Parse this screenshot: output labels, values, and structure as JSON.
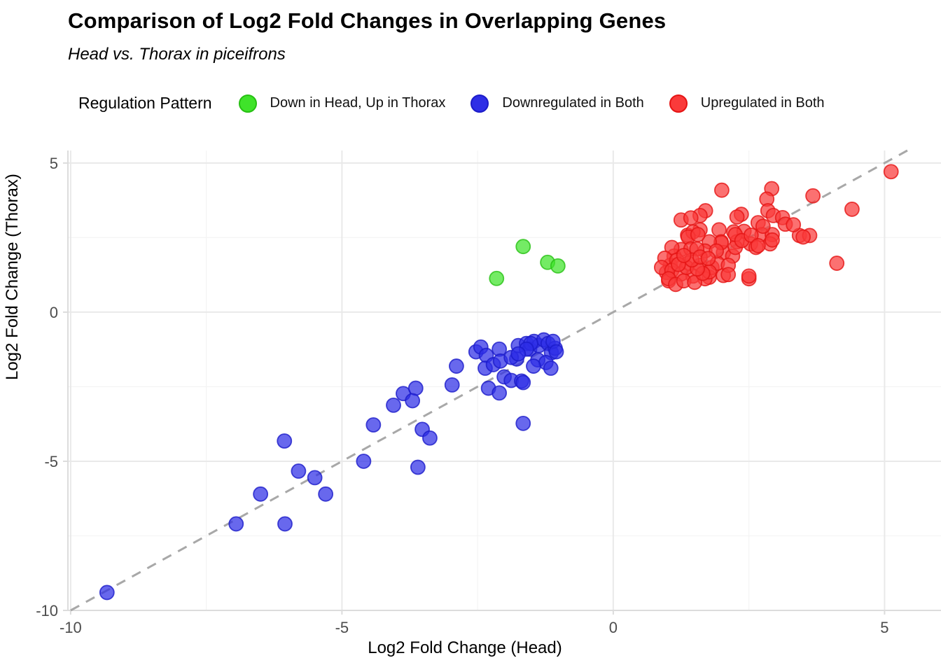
{
  "title": "Comparison of Log2 Fold Changes in Overlapping Genes",
  "subtitle": "Head vs. Thorax in piceifrons",
  "legend": {
    "title": "Regulation Pattern",
    "items": [
      {
        "label": "Down in Head, Up in Thorax",
        "color": "#3FE32A",
        "stroke": "#27C013"
      },
      {
        "label": "Downregulated in Both",
        "color": "#2E2EE6",
        "stroke": "#1C1CC9"
      },
      {
        "label": "Upregulated in Both",
        "color": "#FA3A3A",
        "stroke": "#E51414"
      }
    ]
  },
  "chart_data": {
    "type": "scatter",
    "title": "Comparison of Log2 Fold Changes in Overlapping Genes",
    "subtitle": "Head vs. Thorax in piceifrons",
    "xlabel": "Log2 Fold Change (Head)",
    "ylabel": "Log2 Fold Change (Thorax)",
    "xlim": [
      -10.05,
      6.04
    ],
    "ylim": [
      -10.0,
      5.42
    ],
    "x_ticks": [
      -10,
      -5,
      0,
      5
    ],
    "y_ticks": [
      -10,
      -5,
      0,
      5
    ],
    "x_minor": [
      -7.5,
      -2.5,
      2.5
    ],
    "y_minor": [
      -7.5,
      -2.5,
      2.5
    ],
    "grid": "on",
    "legend_position": "top",
    "reference_line": {
      "identity": true,
      "style": "dashed",
      "color": "#A8A8A8"
    },
    "series": [
      {
        "name": "Down in Head, Up in Thorax",
        "color": "#3FE32A",
        "stroke": "#27C013",
        "points": [
          [
            -2.15,
            1.13
          ],
          [
            -1.66,
            2.2
          ],
          [
            -1.21,
            1.67
          ],
          [
            -1.02,
            1.55
          ]
        ]
      },
      {
        "name": "Downregulated in Both",
        "color": "#2E2EE6",
        "stroke": "#1C1CC9",
        "points": [
          [
            -9.33,
            -9.4
          ],
          [
            -6.95,
            -7.1
          ],
          [
            -6.05,
            -7.1
          ],
          [
            -6.5,
            -6.1
          ],
          [
            -6.06,
            -4.32
          ],
          [
            -5.8,
            -5.33
          ],
          [
            -5.5,
            -5.55
          ],
          [
            -5.3,
            -6.1
          ],
          [
            -4.6,
            -5.0
          ],
          [
            -4.42,
            -3.78
          ],
          [
            -4.05,
            -3.12
          ],
          [
            -3.87,
            -2.73
          ],
          [
            -3.64,
            -2.55
          ],
          [
            -3.7,
            -2.97
          ],
          [
            -3.6,
            -5.2
          ],
          [
            -3.52,
            -3.93
          ],
          [
            -3.38,
            -4.22
          ],
          [
            -2.97,
            -2.44
          ],
          [
            -2.89,
            -1.81
          ],
          [
            -2.53,
            -1.33
          ],
          [
            -2.44,
            -1.17
          ],
          [
            -2.34,
            -1.45
          ],
          [
            -2.36,
            -1.88
          ],
          [
            -2.21,
            -1.76
          ],
          [
            -2.3,
            -2.55
          ],
          [
            -2.1,
            -1.24
          ],
          [
            -2.08,
            -1.64
          ],
          [
            -2.01,
            -2.17
          ],
          [
            -2.1,
            -2.71
          ],
          [
            -1.88,
            -2.29
          ],
          [
            -1.69,
            -2.31
          ],
          [
            -1.78,
            -1.57
          ],
          [
            -1.88,
            -1.52
          ],
          [
            -1.75,
            -1.12
          ],
          [
            -1.6,
            -1.05
          ],
          [
            -1.54,
            -1.24
          ],
          [
            -1.46,
            -0.98
          ],
          [
            -1.37,
            -1.12
          ],
          [
            -1.28,
            -0.93
          ],
          [
            -1.2,
            -1.05
          ],
          [
            -1.14,
            -1.36
          ],
          [
            -1.07,
            -1.21
          ],
          [
            -1.11,
            -0.98
          ],
          [
            -1.39,
            -1.6
          ],
          [
            -1.24,
            -1.69
          ],
          [
            -1.47,
            -1.81
          ],
          [
            -1.15,
            -1.88
          ],
          [
            -1.05,
            -1.33
          ],
          [
            -1.66,
            -2.36
          ],
          [
            -1.66,
            -3.73
          ],
          [
            -1.52,
            -1.05
          ],
          [
            -1.6,
            -1.24
          ],
          [
            -1.75,
            -1.4
          ]
        ]
      },
      {
        "name": "Upregulated in Both",
        "color": "#FA3A3A",
        "stroke": "#E51414",
        "points": [
          [
            5.12,
            4.71
          ],
          [
            3.68,
            3.9
          ],
          [
            4.4,
            3.45
          ],
          [
            4.12,
            1.64
          ],
          [
            3.43,
            2.57
          ],
          [
            3.62,
            2.57
          ],
          [
            2.0,
            4.09
          ],
          [
            2.92,
            4.14
          ],
          [
            2.83,
            3.79
          ],
          [
            1.7,
            3.4
          ],
          [
            1.6,
            3.24
          ],
          [
            2.36,
            3.28
          ],
          [
            2.28,
            3.19
          ],
          [
            2.85,
            3.4
          ],
          [
            2.95,
            3.24
          ],
          [
            3.12,
            3.17
          ],
          [
            3.17,
            2.95
          ],
          [
            2.67,
            3.0
          ],
          [
            2.74,
            2.6
          ],
          [
            2.93,
            2.6
          ],
          [
            3.5,
            2.52
          ],
          [
            3.32,
            2.93
          ],
          [
            1.25,
            3.09
          ],
          [
            1.43,
            3.16
          ],
          [
            1.37,
            2.58
          ],
          [
            1.95,
            2.76
          ],
          [
            2.22,
            2.69
          ],
          [
            2.41,
            2.71
          ],
          [
            1.99,
            2.36
          ],
          [
            2.28,
            2.36
          ],
          [
            2.53,
            2.29
          ],
          [
            2.63,
            2.17
          ],
          [
            2.89,
            2.29
          ],
          [
            2.5,
            1.12
          ],
          [
            1.6,
            2.76
          ],
          [
            1.47,
            2.69
          ],
          [
            1.38,
            2.52
          ],
          [
            1.25,
            2.1
          ],
          [
            1.12,
            1.88
          ],
          [
            1.05,
            1.57
          ],
          [
            0.98,
            1.33
          ],
          [
            1.02,
            1.05
          ],
          [
            1.77,
            1.17
          ],
          [
            2.03,
            2.0
          ],
          [
            2.2,
            1.88
          ],
          [
            2.25,
            2.17
          ],
          [
            1.99,
            2.33
          ],
          [
            1.77,
            2.36
          ],
          [
            1.56,
            2.6
          ],
          [
            2.25,
            2.6
          ],
          [
            2.37,
            2.4
          ],
          [
            1.08,
            2.17
          ],
          [
            1.43,
            2.12
          ],
          [
            1.69,
            2.05
          ],
          [
            0.95,
            1.81
          ],
          [
            1.17,
            1.74
          ],
          [
            1.38,
            1.64
          ],
          [
            1.6,
            1.57
          ],
          [
            1.82,
            1.5
          ],
          [
            0.89,
            1.5
          ],
          [
            1.08,
            1.4
          ],
          [
            1.25,
            1.28
          ],
          [
            1.47,
            1.21
          ],
          [
            1.02,
            1.12
          ],
          [
            1.69,
            1.12
          ],
          [
            2.03,
            1.23
          ],
          [
            1.92,
            1.64
          ],
          [
            2.12,
            1.57
          ],
          [
            2.5,
            1.21
          ],
          [
            2.76,
            2.88
          ],
          [
            2.54,
            2.58
          ],
          [
            2.67,
            2.23
          ],
          [
            2.93,
            2.42
          ],
          [
            1.54,
            2.12
          ],
          [
            1.9,
            2.05
          ],
          [
            2.12,
            1.26
          ],
          [
            1.77,
            1.35
          ],
          [
            1.15,
            0.93
          ],
          [
            1.3,
            1.05
          ],
          [
            1.5,
            1.0
          ],
          [
            1.65,
            1.3
          ],
          [
            1.35,
            1.5
          ],
          [
            1.55,
            1.45
          ],
          [
            1.2,
            1.6
          ],
          [
            1.45,
            1.75
          ],
          [
            1.3,
            1.9
          ],
          [
            1.6,
            1.85
          ],
          [
            1.75,
            1.8
          ]
        ]
      }
    ]
  },
  "colors": {
    "grid_major": "#E9E9E9",
    "grid_minor": "#F4F4F4",
    "axis_line": "#DCDCDC",
    "tick_label": "#4D4D4D",
    "dashed_line": "#A8A8A8"
  }
}
